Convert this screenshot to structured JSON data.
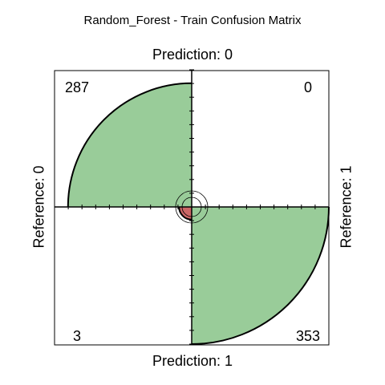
{
  "chart_data": {
    "type": "fourfold",
    "title": "Random_Forest - Train Confusion Matrix",
    "row_labels": [
      "Reference: 0",
      "Reference: 1"
    ],
    "col_labels": [
      "Prediction: 0",
      "Prediction: 1"
    ],
    "cells": [
      {
        "row": 0,
        "col": 0,
        "value": 287,
        "fill": "#99cc99"
      },
      {
        "row": 0,
        "col": 1,
        "value": 0,
        "fill": "#99cc99"
      },
      {
        "row": 1,
        "col": 0,
        "value": 3,
        "fill": "#cc6666"
      },
      {
        "row": 1,
        "col": 1,
        "value": 353,
        "fill": "#99cc99"
      }
    ],
    "colors": {
      "agree": "#99cc99",
      "disagree": "#cc6666"
    }
  }
}
